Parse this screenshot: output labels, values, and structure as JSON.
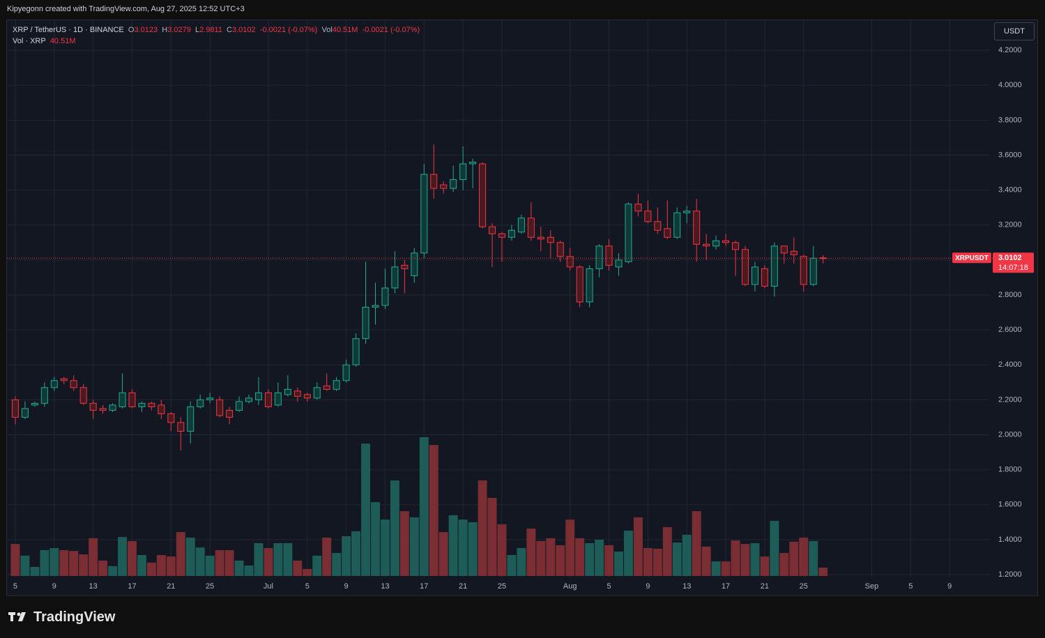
{
  "header": "Kipyegonn created with TradingView.com, Aug 27, 2025 12:52 UTC+3",
  "brand": "TradingView",
  "currency_button": "USDT",
  "chart_data": {
    "type": "candlestick",
    "symbol": "XRP / TetherUS · 1D · BINANCE",
    "ohlc_letters": [
      "O",
      "H",
      "L",
      "C"
    ],
    "vol_letter": "Vol",
    "change": "-0.0021",
    "change_pct": "(-0.07%)",
    "volume_title": "Vol · XRP",
    "price_tag": "XRPUSDT",
    "countdown": "14:07:18",
    "x": [
      "2025-06-05",
      "2025-06-06",
      "2025-06-07",
      "2025-06-08",
      "2025-06-09",
      "2025-06-10",
      "2025-06-11",
      "2025-06-12",
      "2025-06-13",
      "2025-06-14",
      "2025-06-15",
      "2025-06-16",
      "2025-06-17",
      "2025-06-18",
      "2025-06-19",
      "2025-06-20",
      "2025-06-21",
      "2025-06-22",
      "2025-06-23",
      "2025-06-24",
      "2025-06-25",
      "2025-06-26",
      "2025-06-27",
      "2025-06-28",
      "2025-06-29",
      "2025-06-30",
      "2025-07-01",
      "2025-07-02",
      "2025-07-03",
      "2025-07-04",
      "2025-07-05",
      "2025-07-06",
      "2025-07-07",
      "2025-07-08",
      "2025-07-09",
      "2025-07-10",
      "2025-07-11",
      "2025-07-12",
      "2025-07-13",
      "2025-07-14",
      "2025-07-15",
      "2025-07-16",
      "2025-07-17",
      "2025-07-18",
      "2025-07-19",
      "2025-07-20",
      "2025-07-21",
      "2025-07-22",
      "2025-07-23",
      "2025-07-24",
      "2025-07-25",
      "2025-07-26",
      "2025-07-27",
      "2025-07-28",
      "2025-07-29",
      "2025-07-30",
      "2025-07-31",
      "2025-08-01",
      "2025-08-02",
      "2025-08-03",
      "2025-08-04",
      "2025-08-05",
      "2025-08-06",
      "2025-08-07",
      "2025-08-08",
      "2025-08-09",
      "2025-08-10",
      "2025-08-11",
      "2025-08-12",
      "2025-08-13",
      "2025-08-14",
      "2025-08-15",
      "2025-08-16",
      "2025-08-17",
      "2025-08-18",
      "2025-08-19",
      "2025-08-20",
      "2025-08-21",
      "2025-08-22",
      "2025-08-23",
      "2025-08-24",
      "2025-08-25",
      "2025-08-26",
      "2025-08-27"
    ],
    "open": [
      2.2,
      2.1,
      2.17,
      2.18,
      2.27,
      2.32,
      2.31,
      2.27,
      2.18,
      2.15,
      2.14,
      2.16,
      2.24,
      2.16,
      2.18,
      2.17,
      2.12,
      2.07,
      2.02,
      2.16,
      2.2,
      2.2,
      2.14,
      2.14,
      2.19,
      2.2,
      2.24,
      2.17,
      2.23,
      2.25,
      2.23,
      2.21,
      2.28,
      2.26,
      2.31,
      2.4,
      2.55,
      2.73,
      2.74,
      2.84,
      2.97,
      2.91,
      3.04,
      3.49,
      3.43,
      3.41,
      3.46,
      3.55,
      3.55,
      3.19,
      3.15,
      3.13,
      3.16,
      3.24,
      3.13,
      3.13,
      3.1,
      3.02,
      2.96,
      2.76,
      2.95,
      3.08,
      2.96,
      2.99,
      3.32,
      3.28,
      3.22,
      3.18,
      3.13,
      3.27,
      3.28,
      3.09,
      3.08,
      3.11,
      3.1,
      3.06,
      2.86,
      2.95,
      2.85,
      3.08,
      3.05,
      3.02,
      2.86,
      3.0123
    ],
    "high": [
      2.22,
      2.19,
      2.19,
      2.3,
      2.33,
      2.33,
      2.34,
      2.29,
      2.2,
      2.17,
      2.18,
      2.35,
      2.26,
      2.19,
      2.19,
      2.2,
      2.13,
      2.1,
      2.19,
      2.23,
      2.24,
      2.22,
      2.16,
      2.22,
      2.23,
      2.33,
      2.26,
      2.3,
      2.34,
      2.27,
      2.24,
      2.3,
      2.35,
      2.33,
      2.43,
      2.58,
      2.99,
      2.87,
      2.95,
      3.05,
      3.0,
      3.07,
      3.55,
      3.66,
      3.45,
      3.54,
      3.65,
      3.58,
      3.56,
      3.21,
      3.16,
      3.2,
      3.26,
      3.33,
      3.19,
      3.17,
      3.11,
      3.07,
      2.97,
      2.97,
      3.09,
      3.12,
      3.04,
      3.33,
      3.38,
      3.34,
      3.3,
      3.34,
      3.3,
      3.31,
      3.35,
      3.15,
      3.14,
      3.15,
      3.11,
      3.08,
      2.99,
      2.97,
      3.1,
      3.08,
      3.13,
      3.03,
      3.08,
      3.0279
    ],
    "low": [
      2.06,
      2.09,
      2.16,
      2.16,
      2.25,
      2.29,
      2.25,
      2.17,
      2.09,
      2.12,
      2.13,
      2.15,
      2.15,
      2.13,
      2.14,
      2.09,
      2.02,
      1.91,
      1.95,
      2.15,
      2.18,
      2.1,
      2.06,
      2.13,
      2.18,
      2.17,
      2.15,
      2.16,
      2.22,
      2.19,
      2.19,
      2.2,
      2.25,
      2.25,
      2.3,
      2.39,
      2.52,
      2.63,
      2.72,
      2.81,
      2.81,
      2.87,
      3.01,
      3.35,
      3.38,
      3.39,
      3.4,
      3.41,
      3.18,
      2.96,
      2.99,
      3.11,
      3.15,
      3.11,
      3.05,
      3.01,
      2.99,
      2.94,
      2.73,
      2.73,
      2.9,
      2.94,
      2.91,
      2.98,
      3.25,
      3.21,
      3.15,
      3.12,
      3.12,
      3.21,
      2.99,
      3.0,
      3.06,
      3.08,
      2.91,
      2.85,
      2.82,
      2.84,
      2.79,
      2.98,
      2.98,
      2.82,
      2.85,
      2.9811
    ],
    "close": [
      2.1,
      2.15,
      2.18,
      2.27,
      2.31,
      2.31,
      2.27,
      2.18,
      2.14,
      2.14,
      2.17,
      2.24,
      2.16,
      2.18,
      2.16,
      2.12,
      2.07,
      2.02,
      2.16,
      2.2,
      2.21,
      2.11,
      2.1,
      2.19,
      2.21,
      2.24,
      2.16,
      2.24,
      2.26,
      2.22,
      2.21,
      2.27,
      2.26,
      2.31,
      2.4,
      2.55,
      2.73,
      2.74,
      2.84,
      2.96,
      2.95,
      3.04,
      3.49,
      3.41,
      3.41,
      3.46,
      3.55,
      3.56,
      3.19,
      3.15,
      3.13,
      3.17,
      3.24,
      3.13,
      3.12,
      3.1,
      3.02,
      2.96,
      2.76,
      2.95,
      3.08,
      2.97,
      3.0,
      3.32,
      3.28,
      3.22,
      3.17,
      3.13,
      3.27,
      3.28,
      3.09,
      3.08,
      3.11,
      3.1,
      3.06,
      2.86,
      2.96,
      2.85,
      3.08,
      3.04,
      3.03,
      2.86,
      3.01,
      3.0102
    ],
    "volume": [
      156,
      99,
      44,
      126,
      136,
      126,
      122,
      105,
      184,
      75,
      48,
      190,
      170,
      102,
      65,
      102,
      95,
      214,
      187,
      139,
      99,
      126,
      126,
      75,
      51,
      160,
      136,
      160,
      160,
      75,
      34,
      99,
      187,
      112,
      194,
      218,
      646,
      360,
      275,
      466,
      316,
      286,
      677,
      639,
      214,
      296,
      275,
      262,
      466,
      381,
      252,
      102,
      136,
      231,
      170,
      184,
      150,
      275,
      184,
      160,
      177,
      150,
      119,
      221,
      286,
      136,
      133,
      238,
      163,
      201,
      316,
      143,
      71,
      71,
      173,
      156,
      160,
      95,
      269,
      112,
      167,
      187,
      170,
      40.51
    ],
    "volume_labels": {
      "83": "40.51M"
    },
    "up_color": "#22ab94",
    "down_color": "#f23645",
    "up_fill": "#0e3b37",
    "down_fill": "#4a1a20",
    "up_volume_color": "#1e5c58",
    "down_volume_color": "#7a2e33",
    "xlim": [
      "2025-06-04",
      "2025-09-13"
    ],
    "ylim": [
      1.184,
      4.368
    ],
    "xticks": [
      {
        "value": "2025-06-05",
        "label": "5"
      },
      {
        "value": "2025-06-09",
        "label": "9"
      },
      {
        "value": "2025-06-13",
        "label": "13"
      },
      {
        "value": "2025-06-17",
        "label": "17"
      },
      {
        "value": "2025-06-21",
        "label": "21"
      },
      {
        "value": "2025-06-25",
        "label": "25"
      },
      {
        "value": "2025-07-01",
        "label": "Jul"
      },
      {
        "value": "2025-07-05",
        "label": "5"
      },
      {
        "value": "2025-07-09",
        "label": "9"
      },
      {
        "value": "2025-07-13",
        "label": "13"
      },
      {
        "value": "2025-07-17",
        "label": "17"
      },
      {
        "value": "2025-07-21",
        "label": "21"
      },
      {
        "value": "2025-07-25",
        "label": "25"
      },
      {
        "value": "2025-08-01",
        "label": "Aug"
      },
      {
        "value": "2025-08-05",
        "label": "5"
      },
      {
        "value": "2025-08-09",
        "label": "9"
      },
      {
        "value": "2025-08-13",
        "label": "13"
      },
      {
        "value": "2025-08-17",
        "label": "17"
      },
      {
        "value": "2025-08-21",
        "label": "21"
      },
      {
        "value": "2025-08-25",
        "label": "25"
      },
      {
        "value": "2025-09-01",
        "label": "Sep"
      },
      {
        "value": "2025-09-05",
        "label": "5"
      },
      {
        "value": "2025-09-09",
        "label": "9"
      }
    ],
    "yticks": [
      {
        "value": 1.2,
        "label": "1.2000"
      },
      {
        "value": 1.4,
        "label": "1.4000"
      },
      {
        "value": 1.6,
        "label": "1.6000"
      },
      {
        "value": 1.8,
        "label": "1.8000"
      },
      {
        "value": 2.0,
        "label": "2.0000"
      },
      {
        "value": 2.2,
        "label": "2.2000"
      },
      {
        "value": 2.4,
        "label": "2.4000"
      },
      {
        "value": 2.6,
        "label": "2.6000"
      },
      {
        "value": 2.8,
        "label": "2.8000"
      },
      {
        "value": 3.0,
        "label": "3.0000"
      },
      {
        "value": 3.2,
        "label": "3.2000"
      },
      {
        "value": 3.4,
        "label": "3.4000"
      },
      {
        "value": 3.6,
        "label": "3.6000"
      },
      {
        "value": 3.8,
        "label": "3.8000"
      },
      {
        "value": 4.0,
        "label": "4.0000"
      },
      {
        "value": 4.2,
        "label": "4.2000"
      }
    ],
    "grid": true
  }
}
